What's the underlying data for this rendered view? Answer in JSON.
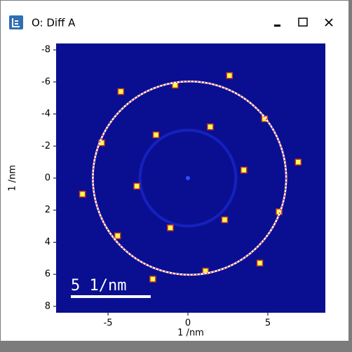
{
  "window": {
    "title": "O: Diff A"
  },
  "chart_data": {
    "type": "scatter",
    "x_label": "1 /nm",
    "y_label": "1 /nm",
    "xlim": [
      -8.25,
      8.6
    ],
    "ylim": [
      -8.4,
      8.4
    ],
    "y_inverted": true,
    "xticks": [
      -5,
      0,
      5
    ],
    "yticks": [
      -8,
      -6,
      -4,
      -2,
      0,
      2,
      4,
      6,
      8
    ],
    "x": [
      2.6,
      -0.8,
      -4.2,
      4.8,
      1.4,
      -2.0,
      -5.4,
      6.9,
      3.5,
      -3.2,
      -6.6,
      5.7,
      2.3,
      -1.1,
      -4.4,
      4.5,
      1.1,
      -2.2
    ],
    "y": [
      -6.4,
      -5.8,
      -5.4,
      -3.7,
      -3.2,
      -2.7,
      -2.2,
      -1.0,
      -0.5,
      0.5,
      1.0,
      2.1,
      2.6,
      3.1,
      3.6,
      5.3,
      5.8,
      6.3
    ],
    "color": "#ffff50",
    "circle": {
      "center": [
        0.1,
        0
      ],
      "radius": 6.05
    },
    "scale_bar": {
      "label": "5 1/nm",
      "length": 5
    }
  }
}
